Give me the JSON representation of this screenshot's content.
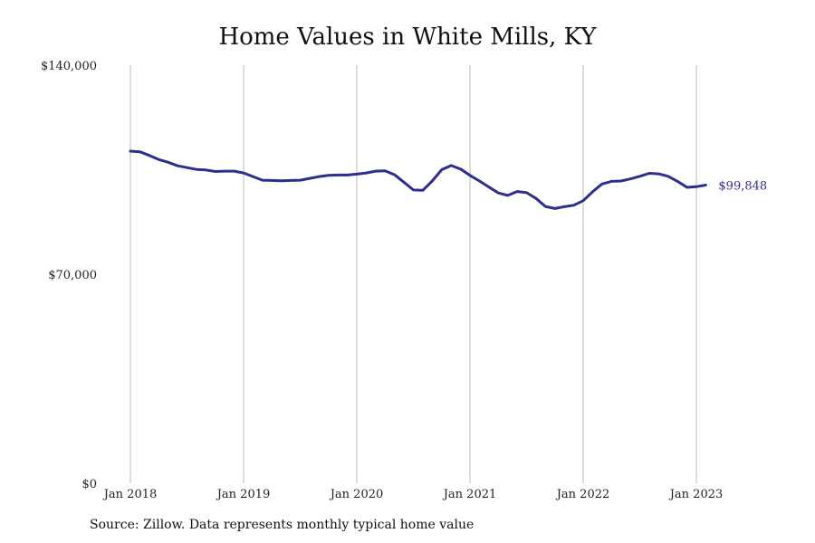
{
  "chart_data": {
    "type": "line",
    "title": "Home Values in White Mills, KY",
    "xlabel": "",
    "ylabel": "",
    "x_tick_labels": [
      "Jan 2018",
      "Jan 2019",
      "Jan 2020",
      "Jan 2021",
      "Jan 2022",
      "Jan 2023"
    ],
    "y_tick_labels": [
      "$140,000",
      "$70,000",
      "$0"
    ],
    "ylim": [
      0,
      140000
    ],
    "grid": "vertical",
    "series": [
      {
        "color": "#2e2e8f",
        "points": [
          [
            "2018-01",
            111200
          ],
          [
            "2018-02",
            111000
          ],
          [
            "2018-03",
            109800
          ],
          [
            "2018-04",
            108400
          ],
          [
            "2018-05",
            107500
          ],
          [
            "2018-06",
            106300
          ],
          [
            "2018-07",
            105700
          ],
          [
            "2018-08",
            105100
          ],
          [
            "2018-09",
            104900
          ],
          [
            "2018-10",
            104400
          ],
          [
            "2018-11",
            104500
          ],
          [
            "2018-12",
            104500
          ],
          [
            "2019-01",
            103900
          ],
          [
            "2019-02",
            102700
          ],
          [
            "2019-03",
            101500
          ],
          [
            "2019-04",
            101400
          ],
          [
            "2019-05",
            101300
          ],
          [
            "2019-06",
            101400
          ],
          [
            "2019-07",
            101500
          ],
          [
            "2019-08",
            102100
          ],
          [
            "2019-09",
            102700
          ],
          [
            "2019-10",
            103100
          ],
          [
            "2019-11",
            103200
          ],
          [
            "2019-12",
            103200
          ],
          [
            "2020-01",
            103500
          ],
          [
            "2020-02",
            103900
          ],
          [
            "2020-03",
            104500
          ],
          [
            "2020-04",
            104600
          ],
          [
            "2020-05",
            103300
          ],
          [
            "2020-06",
            100800
          ],
          [
            "2020-07",
            98200
          ],
          [
            "2020-08",
            98100
          ],
          [
            "2020-09",
            101200
          ],
          [
            "2020-10",
            105000
          ],
          [
            "2020-11",
            106400
          ],
          [
            "2020-12",
            105200
          ],
          [
            "2021-01",
            103100
          ],
          [
            "2021-02",
            101200
          ],
          [
            "2021-03",
            99200
          ],
          [
            "2021-04",
            97200
          ],
          [
            "2021-05",
            96400
          ],
          [
            "2021-06",
            97700
          ],
          [
            "2021-07",
            97300
          ],
          [
            "2021-08",
            95400
          ],
          [
            "2021-09",
            92700
          ],
          [
            "2021-10",
            92000
          ],
          [
            "2021-11",
            92600
          ],
          [
            "2021-12",
            93100
          ],
          [
            "2022-01",
            94600
          ],
          [
            "2022-02",
            97600
          ],
          [
            "2022-03",
            100200
          ],
          [
            "2022-04",
            101100
          ],
          [
            "2022-05",
            101200
          ],
          [
            "2022-06",
            101900
          ],
          [
            "2022-07",
            102800
          ],
          [
            "2022-08",
            103800
          ],
          [
            "2022-09",
            103600
          ],
          [
            "2022-10",
            102800
          ],
          [
            "2022-11",
            101100
          ],
          [
            "2022-12",
            99100
          ],
          [
            "2023-01",
            99300
          ],
          [
            "2023-02",
            99848
          ]
        ]
      }
    ],
    "end_label": "$99,848"
  },
  "footer": {
    "source": "Source: Zillow. Data represents monthly typical home value"
  }
}
